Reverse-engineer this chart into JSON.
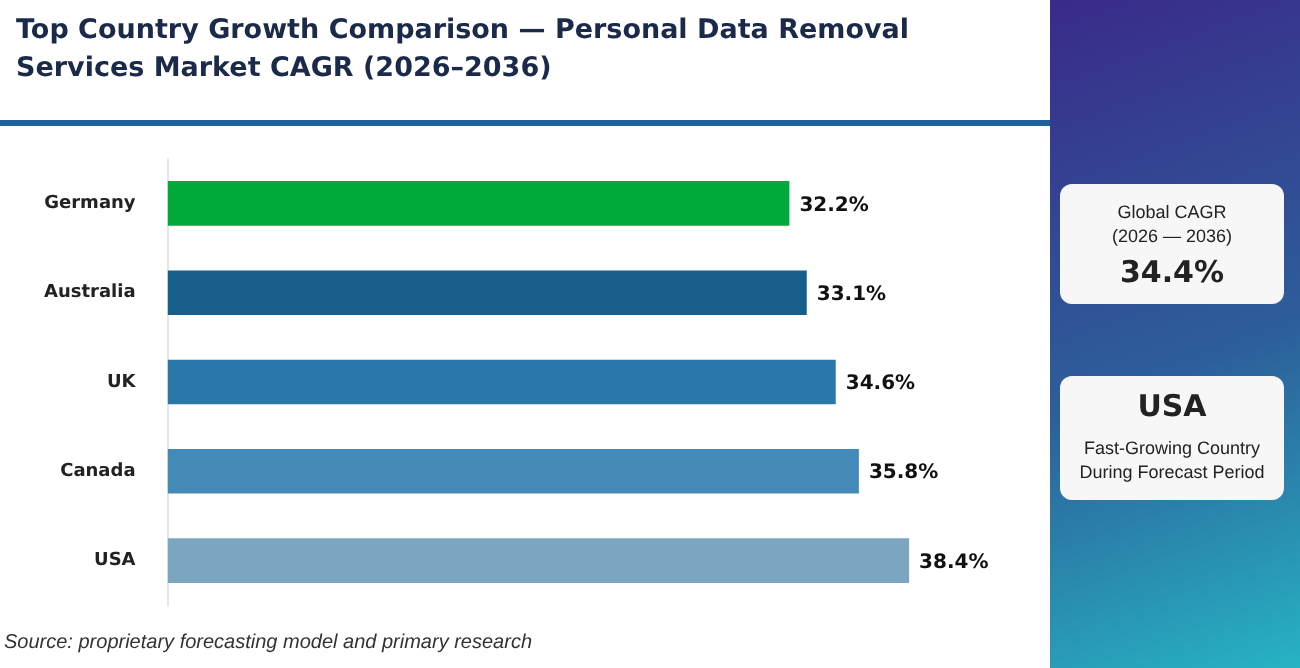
{
  "chart_data": {
    "type": "bar",
    "orientation": "horizontal",
    "title": "Top Country Growth Comparison — Personal Data Removal Services Market CAGR (2026–2036)",
    "categories": [
      "Germany",
      "Australia",
      "UK",
      "Canada",
      "USA"
    ],
    "values": [
      32.2,
      33.1,
      34.6,
      35.8,
      38.4
    ],
    "colors": [
      "#00aa3a",
      "#175e8c",
      "#2a78aa",
      "#448ab8",
      "#7ca6c0"
    ],
    "value_labels": [
      "32.2%",
      "33.1%",
      "34.6%",
      "35.8%",
      "38.4%"
    ],
    "tick_labels": "y",
    "annotations": [
      "Source: proprietary forecasting model and primary research",
      "Global CAGR (2026 — 2036)",
      "34.4%",
      "USA",
      "Fast-Growing Country During Forecast Period"
    ]
  }
}
